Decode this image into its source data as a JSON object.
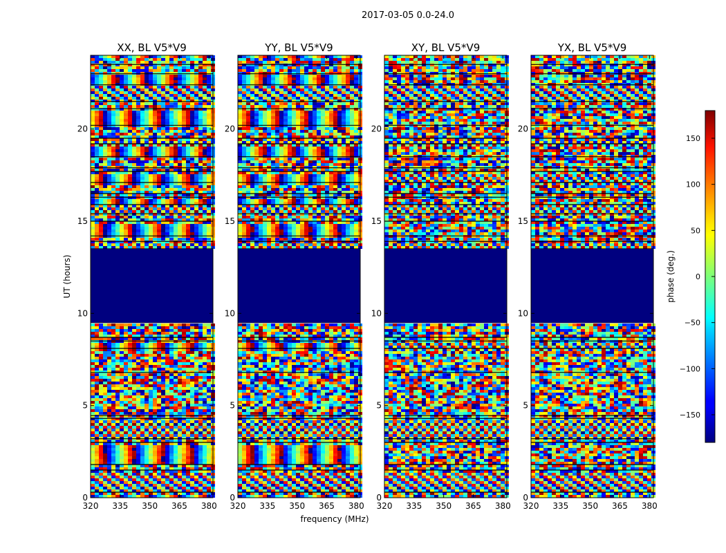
{
  "figure": {
    "suptitle": "2017-03-05 0.0-24.0"
  },
  "chart_data": {
    "type": "heatmap",
    "colormap": "jet",
    "xlabel": "frequency (MHz)",
    "ylabel": "UT (hours)",
    "xlim": [
      320,
      382
    ],
    "ylim": [
      0,
      24
    ],
    "x_ticks": [
      "320",
      "335",
      "350",
      "365",
      "380"
    ],
    "x_tick_values": [
      320,
      335,
      350,
      365,
      380
    ],
    "y_ticks": [
      "0",
      "5",
      "10",
      "15",
      "20"
    ],
    "y_tick_values": [
      0,
      5,
      10,
      15,
      20
    ],
    "panels": [
      {
        "title": "XX, BL V5*V9",
        "kind": "parallel"
      },
      {
        "title": "YY, BL V5*V9",
        "kind": "parallel"
      },
      {
        "title": "XY, BL V5*V9",
        "kind": "cross"
      },
      {
        "title": "YX, BL V5*V9",
        "kind": "cross"
      }
    ],
    "flagged_interval_ut": [
      9.5,
      13.5
    ],
    "band_boundaries_ut": [
      0.3,
      1.5,
      1.8,
      3.0,
      3.2,
      4.3,
      4.45,
      6.8,
      8.1,
      8.5,
      8.7,
      9.5,
      13.5,
      13.9,
      14.2,
      15.0,
      15.4,
      15.9,
      16.3,
      16.5,
      17.1,
      17.7,
      17.9,
      18.5,
      19.2,
      19.5,
      20.2,
      21.1,
      21.5,
      22.4,
      23.0,
      23.5
    ],
    "colorbar": {
      "label": "phase (deg.)",
      "range": [
        -180,
        180
      ],
      "ticks": [
        "150",
        "100",
        "50",
        "0",
        "−50",
        "−100",
        "−150"
      ],
      "tick_values": [
        150,
        100,
        50,
        0,
        -50,
        -100,
        -150
      ]
    }
  }
}
